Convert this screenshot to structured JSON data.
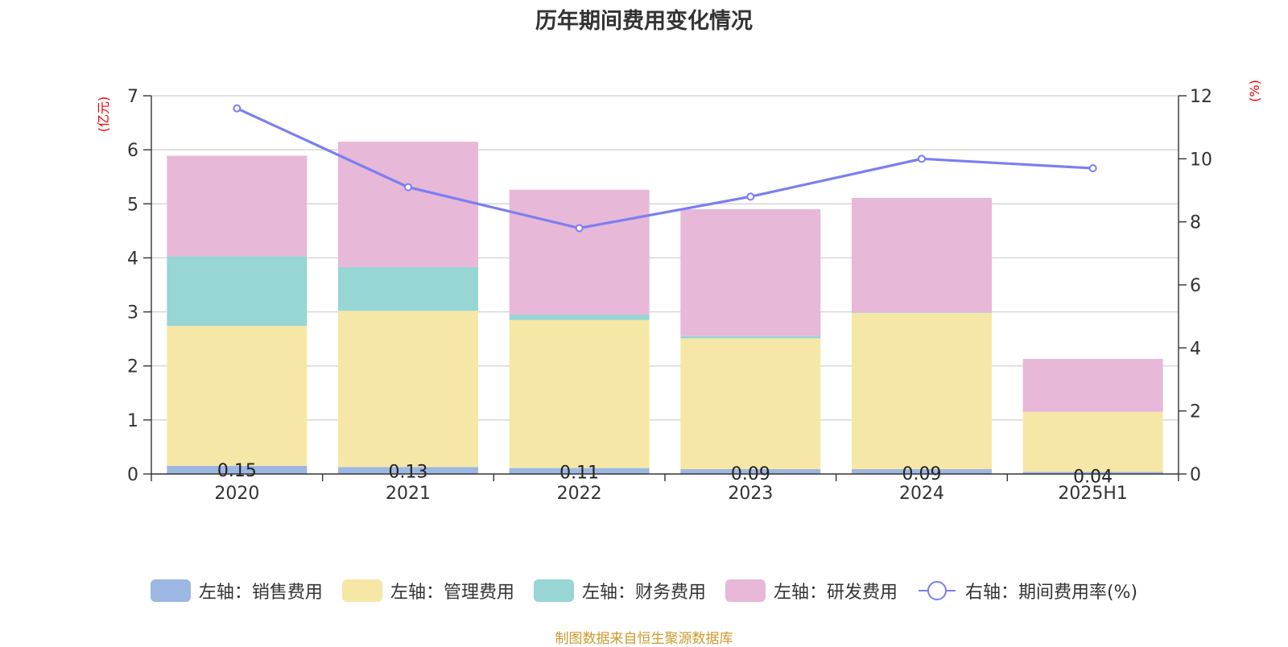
{
  "chart_data": {
    "type": "bar",
    "title": "历年期间费用变化情况",
    "categories": [
      "2020",
      "2021",
      "2022",
      "2023",
      "2024",
      "2025H1"
    ],
    "left_axis": {
      "unit_label": "(亿元)",
      "ylim": [
        0,
        7
      ],
      "ticks": [
        "0",
        "1",
        "2",
        "3",
        "4",
        "5",
        "6",
        "7"
      ]
    },
    "right_axis": {
      "unit_label": "(%)",
      "ylim": [
        0,
        12
      ],
      "ticks": [
        "0",
        "2",
        "4",
        "6",
        "8",
        "10",
        "12"
      ]
    },
    "grid": true,
    "legend_position": "bottom",
    "series": [
      {
        "name": "左轴：销售费用",
        "type": "bar",
        "color": "#9db7e3",
        "values": [
          0.15,
          0.13,
          0.11,
          0.09,
          0.09,
          0.04
        ],
        "labels": [
          "0.15",
          "0.13",
          "0.11",
          "0.09",
          "0.09",
          "0.04"
        ]
      },
      {
        "name": "左轴：管理费用",
        "type": "bar",
        "color": "#f7e7a7",
        "values": [
          2.59,
          2.89,
          2.74,
          2.42,
          2.89,
          1.11
        ]
      },
      {
        "name": "左轴：财务费用",
        "type": "bar",
        "color": "#98d5d5",
        "values": [
          1.29,
          0.81,
          0.1,
          0.04,
          0.01,
          0.0
        ]
      },
      {
        "name": "左轴：研发费用",
        "type": "bar",
        "color": "#e7b8d8",
        "values": [
          1.86,
          2.32,
          2.31,
          2.35,
          2.12,
          0.98
        ]
      },
      {
        "name": "右轴：期间费用率(%)",
        "type": "line",
        "color": "#7b7ff0",
        "values": [
          11.6,
          9.1,
          7.8,
          8.8,
          10.0,
          9.7
        ]
      }
    ]
  },
  "footer": {
    "source": "制图数据来自恒生聚源数据库"
  }
}
